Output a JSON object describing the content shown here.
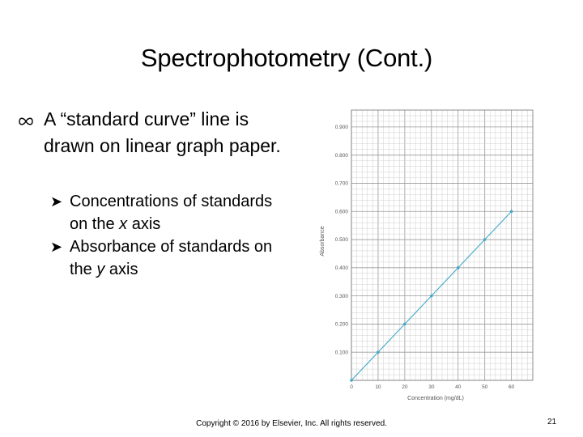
{
  "slide": {
    "title": "Spectrophotometry (Cont.)",
    "bullet_main": "A “standard curve” line is drawn on linear graph paper.",
    "sub_bullets": [
      {
        "prefix": "Concentrations of standards on the ",
        "axis": "x",
        "suffix": " axis"
      },
      {
        "prefix": "Absorbance of standards on the ",
        "axis": "y",
        "suffix": " axis"
      }
    ],
    "footer": "Copyright © 2016 by Elsevier, Inc. All rights reserved.",
    "page_number": "21"
  },
  "icons": {
    "bullet": "infinity-bullet-icon",
    "sub_bullet": "arrow-bullet-icon"
  },
  "chart_data": {
    "type": "line",
    "xlabel": "Concentration (mg/dL)",
    "ylabel": "Absorbance",
    "x_ticks": [
      "0",
      "10",
      "20",
      "30",
      "40",
      "50",
      "60"
    ],
    "y_ticks": [
      "0.100",
      "0.200",
      "0.300",
      "0.400",
      "0.500",
      "0.600",
      "0.700",
      "0.800",
      "0.900"
    ],
    "xlim": [
      0,
      68
    ],
    "ylim": [
      0,
      0.96
    ],
    "grid": true,
    "line_color": "#3fa9c9",
    "series": [
      {
        "x": [
          0,
          10,
          20,
          30,
          40,
          50,
          60
        ],
        "y": [
          0,
          0.1,
          0.2,
          0.3,
          0.4,
          0.5,
          0.6
        ]
      }
    ]
  }
}
